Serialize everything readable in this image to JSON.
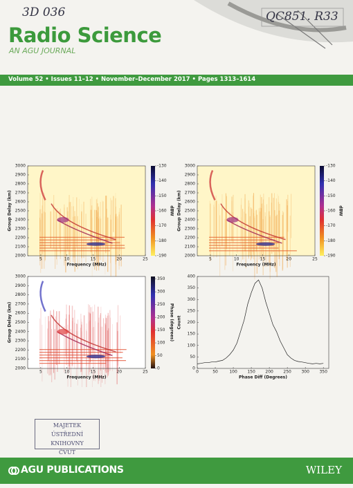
{
  "header": {
    "handwritten_left": "3D 036",
    "handwritten_right": "QC851. R33",
    "title": "Radio Science",
    "subtitle": "AN AGU JOURNAL"
  },
  "banner": "Volume 52 • Issues 11–12 • November–December 2017 • Pages 1313–1614",
  "chart_data": [
    {
      "type": "heatmap",
      "xlabel": "Frequency (MHz)",
      "ylabel": "Group Delay (km)",
      "xlim": [
        2.5,
        25
      ],
      "ylim": [
        2000,
        3000
      ],
      "xticks": [
        5,
        10,
        15,
        20,
        25
      ],
      "yticks": [
        2000,
        2100,
        2200,
        2300,
        2400,
        2500,
        2600,
        2700,
        2800,
        2900,
        3000
      ],
      "colorbar": {
        "label": "dBW",
        "lim": [
          -190,
          -130
        ],
        "ticks": [
          -130,
          -140,
          -150,
          -160,
          -170,
          -180,
          -190
        ]
      }
    },
    {
      "type": "heatmap",
      "xlabel": "Frequency (MHz)",
      "ylabel": "Group Delay (km)",
      "xlim": [
        2.5,
        25
      ],
      "ylim": [
        2000,
        3000
      ],
      "xticks": [
        5,
        10,
        15,
        20,
        25
      ],
      "yticks": [
        2000,
        2100,
        2200,
        2300,
        2400,
        2500,
        2600,
        2700,
        2800,
        2900,
        3000
      ],
      "colorbar": {
        "label": "dBW",
        "lim": [
          -190,
          -130
        ],
        "ticks": [
          -130,
          -140,
          -150,
          -160,
          -170,
          -180,
          -190
        ]
      }
    },
    {
      "type": "heatmap",
      "xlabel": "Frequency (MHz)",
      "ylabel": "Group Delay (km)",
      "xlim": [
        2.5,
        25
      ],
      "ylim": [
        2000,
        3000
      ],
      "xticks": [
        5,
        10,
        15,
        20,
        25
      ],
      "yticks": [
        2000,
        2100,
        2200,
        2300,
        2400,
        2500,
        2600,
        2700,
        2800,
        2900,
        3000
      ],
      "colorbar": {
        "label": "Phase (degrees)",
        "lim": [
          0,
          360
        ],
        "ticks": [
          0,
          50,
          100,
          150,
          200,
          250,
          300,
          350
        ]
      }
    },
    {
      "type": "line",
      "xlabel": "Phase Diff (Degrees)",
      "ylabel": "Count",
      "xlim": [
        0,
        365
      ],
      "ylim": [
        0,
        400
      ],
      "xticks": [
        0,
        50,
        100,
        150,
        200,
        250,
        300,
        350
      ],
      "yticks": [
        0,
        50,
        100,
        150,
        200,
        250,
        300,
        350,
        400
      ],
      "color": "#222222",
      "x": [
        0,
        10,
        20,
        30,
        40,
        50,
        60,
        70,
        80,
        90,
        100,
        110,
        120,
        130,
        140,
        150,
        160,
        170,
        180,
        190,
        200,
        210,
        220,
        230,
        240,
        250,
        260,
        270,
        280,
        290,
        300,
        310,
        320,
        330,
        340,
        350
      ],
      "values": [
        20,
        22,
        25,
        25,
        28,
        28,
        32,
        35,
        45,
        60,
        80,
        110,
        160,
        210,
        280,
        330,
        370,
        385,
        350,
        290,
        240,
        190,
        160,
        120,
        90,
        60,
        45,
        35,
        30,
        28,
        25,
        22,
        20,
        22,
        20,
        22
      ]
    }
  ],
  "stamp": [
    "MAJETEK",
    "ÚSTŘEDNÍ KNIHOVNY",
    "ČVUT"
  ],
  "footer": {
    "publisher": "AGU PUBLICATIONS",
    "wiley": "WILEY"
  }
}
